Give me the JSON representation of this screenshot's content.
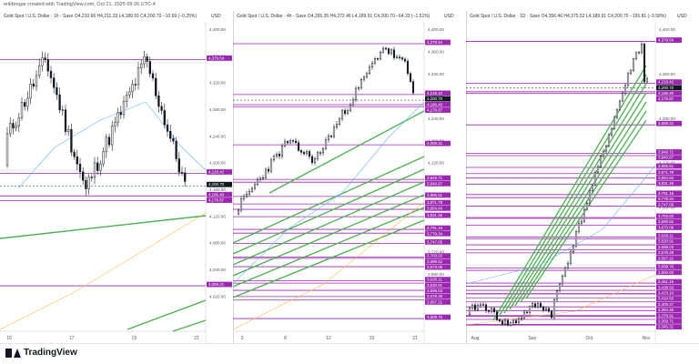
{
  "header": {
    "note": "erikbregar created with TradingView.com, Oct 21, 2025 09:26 UTC-4"
  },
  "panels": [
    {
      "title": "Gold Spot / U.S. Dollar · 1h · Saxo  O4,210.66  H4,211.33  L4,189.91  C4,200.70  −10.69 (−0.25%)",
      "currency": "USD",
      "y_ticks": [
        "4,400.00",
        "4,360.00",
        "4,320.00",
        "4,280.00",
        "4,240.00",
        "4,200.00",
        "4,160.00",
        "4,120.00",
        "4,080.00",
        "4,040.00",
        "4,020.00"
      ],
      "x_ticks": [
        "16",
        "17",
        "19",
        "21"
      ],
      "price_labels": [
        {
          "text": "4,379.54",
          "kind": "level"
        },
        {
          "text": "4,218.42",
          "kind": "level"
        },
        {
          "text": "4,200.70",
          "kind": "current"
        },
        {
          "text": "4,186.40",
          "kind": "level"
        },
        {
          "text": "4,179.87",
          "kind": "level"
        },
        {
          "text": "4,059.21",
          "kind": "level"
        }
      ]
    },
    {
      "title": "Gold Spot / U.S. Dollar · 4h · Saxo  O4,265.35  H4,272.46  L4,189.91  C4,200.70  −64.33 (−1.51%)",
      "currency": "USD",
      "y_ticks": [
        "4,400.00",
        "4,360.00",
        "4,320.00",
        "4,280.00",
        "4,240.00",
        "4,200.00",
        "4,120.00",
        "4,040.00",
        "4,000.00",
        "3,960.00",
        "3,720.00",
        "3,680.00",
        "3,640.00"
      ],
      "x_ticks": [
        "3",
        "8",
        "12",
        "15",
        "21"
      ],
      "price_labels": [
        {
          "text": "4,379.54",
          "kind": "level"
        },
        {
          "text": "4,218.42",
          "kind": "level"
        },
        {
          "text": "4,200.70",
          "kind": "current"
        },
        {
          "text": "4,186.40",
          "kind": "level"
        },
        {
          "text": "4,179.87",
          "kind": "level"
        },
        {
          "text": "4,059.21",
          "kind": "level"
        },
        {
          "text": "3,949.71",
          "kind": "level"
        },
        {
          "text": "3,940.87",
          "kind": "level"
        },
        {
          "text": "3,895.51",
          "kind": "level"
        },
        {
          "text": "3,871.79",
          "kind": "level"
        },
        {
          "text": "3,854.64",
          "kind": "level"
        },
        {
          "text": "3,831.45",
          "kind": "level"
        },
        {
          "text": "3,791.16",
          "kind": "level"
        },
        {
          "text": "3,779.34",
          "kind": "level"
        },
        {
          "text": "3,747.05",
          "kind": "level"
        },
        {
          "text": "3,703.02",
          "kind": "level"
        },
        {
          "text": "3,699.52",
          "kind": "level"
        },
        {
          "text": "3,673.06",
          "kind": "level"
        },
        {
          "text": "3,628.11",
          "kind": "level"
        },
        {
          "text": "3,620.91",
          "kind": "level"
        },
        {
          "text": "3,598.03",
          "kind": "level"
        },
        {
          "text": "3,578.49",
          "kind": "level"
        },
        {
          "text": "3,567.21",
          "kind": "level"
        },
        {
          "text": "3,508.70",
          "kind": "level"
        }
      ]
    },
    {
      "title": "Gold Spot / U.S. Dollar · 1D · Saxo  O4,356.46  H4,375.52  L4,189.91  C4,200.70  −155.81 (−3.58%)",
      "currency": "USD",
      "y_ticks": [
        "4,400.00",
        "4,360.00",
        "4,280.00",
        "4,120.00",
        "4,000.00",
        "3,800.00",
        "3,720.00"
      ],
      "x_ticks": [
        "Aug",
        "Sep",
        "Oct",
        "Nov"
      ],
      "price_labels": [
        {
          "text": "4,379.54",
          "kind": "level"
        },
        {
          "text": "4,218.42",
          "kind": "level"
        },
        {
          "text": "4,200.70",
          "kind": "current"
        },
        {
          "text": "4,186.40",
          "kind": "level"
        },
        {
          "text": "4,179.87",
          "kind": "level"
        },
        {
          "text": "4,059.21",
          "kind": "level"
        },
        {
          "text": "3,949.71",
          "kind": "level"
        },
        {
          "text": "3,940.87",
          "kind": "level"
        },
        {
          "text": "3,895.51",
          "kind": "level"
        },
        {
          "text": "3,871.79",
          "kind": "level"
        },
        {
          "text": "3,854.64",
          "kind": "level"
        },
        {
          "text": "3,831.45",
          "kind": "level"
        },
        {
          "text": "3,791.16",
          "kind": "level"
        },
        {
          "text": "3,779.34",
          "kind": "level"
        },
        {
          "text": "3,747.05",
          "kind": "level"
        },
        {
          "text": "3,703.02",
          "kind": "level"
        },
        {
          "text": "3,699.52",
          "kind": "level"
        },
        {
          "text": "3,673.06",
          "kind": "level"
        },
        {
          "text": "3,628.11",
          "kind": "level"
        },
        {
          "text": "3,620.91",
          "kind": "level"
        },
        {
          "text": "3,598.03",
          "kind": "level"
        },
        {
          "text": "3,578.49",
          "kind": "level"
        },
        {
          "text": "3,567.21",
          "kind": "level"
        },
        {
          "text": "3,508.70",
          "kind": "level"
        },
        {
          "text": "3,500.02",
          "kind": "level"
        },
        {
          "text": "3,451.15",
          "kind": "level"
        },
        {
          "text": "3,438.93",
          "kind": "level"
        },
        {
          "text": "3,423.10",
          "kind": "level"
        },
        {
          "text": "3,410.50",
          "kind": "level"
        },
        {
          "text": "3,409.27",
          "kind": "level"
        },
        {
          "text": "3,394.45",
          "kind": "level"
        },
        {
          "text": "3,378.91",
          "kind": "level"
        },
        {
          "text": "3,359.71",
          "kind": "level"
        },
        {
          "text": "3,345.31",
          "kind": "level"
        },
        {
          "text": "3,326.38",
          "kind": "level"
        },
        {
          "text": "3,323.55",
          "kind": "level"
        },
        {
          "text": "3,311.60",
          "kind": "level"
        },
        {
          "text": "3,291.99",
          "kind": "level"
        },
        {
          "text": "3,289.69",
          "kind": "level"
        }
      ]
    }
  ],
  "footer": {
    "brand": "TradingView"
  },
  "colors": {
    "level": "#9c27b0",
    "current": "#131722",
    "trend": "#4caf50",
    "ma_blue": "#64b5f6",
    "ma_orange": "#ffb74d"
  }
}
